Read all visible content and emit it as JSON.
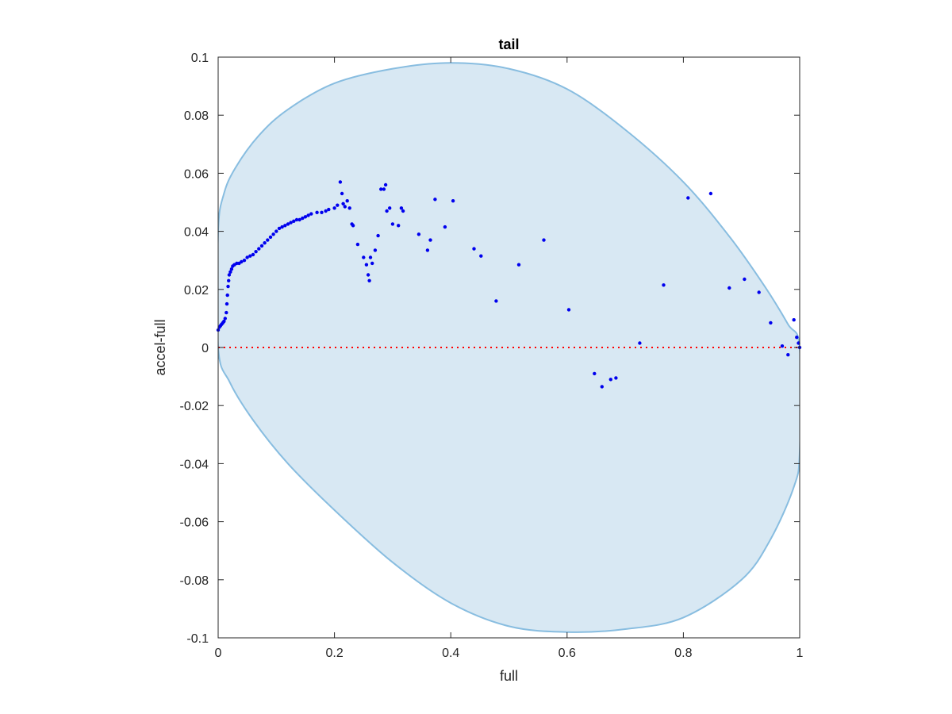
{
  "chart_data": {
    "type": "scatter",
    "title": "tail",
    "xlabel": "full",
    "ylabel": "accel-full",
    "xlim": [
      0,
      1
    ],
    "ylim": [
      -0.1,
      0.1
    ],
    "grid": false,
    "x_ticks": [
      "0",
      "0.2",
      "0.4",
      "0.6",
      "0.8",
      "1"
    ],
    "y_ticks": [
      "0.1",
      "0.08",
      "0.06",
      "0.04",
      "0.02",
      "0",
      "-0.02",
      "-0.04",
      "-0.06",
      "-0.08",
      "-0.1"
    ],
    "x_tick_values": [
      0,
      0.2,
      0.4,
      0.6,
      0.8,
      1
    ],
    "y_tick_values": [
      0.1,
      0.08,
      0.06,
      0.04,
      0.02,
      0,
      -0.02,
      -0.04,
      -0.06,
      -0.08,
      -0.1
    ],
    "reference_line": {
      "y": 0,
      "style": "dotted",
      "color": "#ff0000"
    },
    "region": {
      "shape": "ellipse",
      "fill": "#d8e8f3",
      "stroke": "#88bde0",
      "boundary": [
        [
          0.0,
          0.04
        ],
        [
          0.01,
          0.053
        ],
        [
          0.03,
          0.062
        ],
        [
          0.07,
          0.073
        ],
        [
          0.12,
          0.082
        ],
        [
          0.2,
          0.091
        ],
        [
          0.3,
          0.096
        ],
        [
          0.4,
          0.098
        ],
        [
          0.5,
          0.096
        ],
        [
          0.6,
          0.089
        ],
        [
          0.7,
          0.075
        ],
        [
          0.8,
          0.057
        ],
        [
          0.88,
          0.038
        ],
        [
          0.94,
          0.021
        ],
        [
          0.98,
          0.008
        ],
        [
          1.0,
          0.0
        ],
        [
          1.0,
          -0.036
        ],
        [
          0.99,
          -0.048
        ],
        [
          0.95,
          -0.066
        ],
        [
          0.9,
          -0.08
        ],
        [
          0.8,
          -0.093
        ],
        [
          0.7,
          -0.097
        ],
        [
          0.6,
          -0.098
        ],
        [
          0.5,
          -0.096
        ],
        [
          0.4,
          -0.088
        ],
        [
          0.3,
          -0.074
        ],
        [
          0.2,
          -0.056
        ],
        [
          0.12,
          -0.04
        ],
        [
          0.06,
          -0.025
        ],
        [
          0.02,
          -0.012
        ],
        [
          0.0,
          0.0
        ]
      ]
    },
    "series": [
      {
        "color": "#0000ee",
        "points": [
          [
            0.0,
            0.006
          ],
          [
            0.002,
            0.007
          ],
          [
            0.004,
            0.0075
          ],
          [
            0.006,
            0.008
          ],
          [
            0.008,
            0.0085
          ],
          [
            0.01,
            0.009
          ],
          [
            0.012,
            0.01
          ],
          [
            0.014,
            0.012
          ],
          [
            0.015,
            0.015
          ],
          [
            0.016,
            0.018
          ],
          [
            0.017,
            0.021
          ],
          [
            0.018,
            0.023
          ],
          [
            0.019,
            0.025
          ],
          [
            0.021,
            0.026
          ],
          [
            0.023,
            0.027
          ],
          [
            0.025,
            0.028
          ],
          [
            0.028,
            0.0285
          ],
          [
            0.032,
            0.029
          ],
          [
            0.036,
            0.029
          ],
          [
            0.04,
            0.0295
          ],
          [
            0.045,
            0.03
          ],
          [
            0.05,
            0.031
          ],
          [
            0.055,
            0.0315
          ],
          [
            0.06,
            0.032
          ],
          [
            0.065,
            0.033
          ],
          [
            0.07,
            0.034
          ],
          [
            0.075,
            0.035
          ],
          [
            0.08,
            0.036
          ],
          [
            0.085,
            0.037
          ],
          [
            0.09,
            0.038
          ],
          [
            0.095,
            0.039
          ],
          [
            0.1,
            0.04
          ],
          [
            0.105,
            0.041
          ],
          [
            0.11,
            0.0415
          ],
          [
            0.115,
            0.042
          ],
          [
            0.12,
            0.0425
          ],
          [
            0.125,
            0.043
          ],
          [
            0.13,
            0.0435
          ],
          [
            0.135,
            0.044
          ],
          [
            0.14,
            0.044
          ],
          [
            0.145,
            0.0445
          ],
          [
            0.15,
            0.045
          ],
          [
            0.155,
            0.0455
          ],
          [
            0.16,
            0.046
          ],
          [
            0.17,
            0.0465
          ],
          [
            0.178,
            0.0465
          ],
          [
            0.185,
            0.047
          ],
          [
            0.19,
            0.0475
          ],
          [
            0.2,
            0.048
          ],
          [
            0.205,
            0.049
          ],
          [
            0.21,
            0.057
          ],
          [
            0.213,
            0.053
          ],
          [
            0.215,
            0.0495
          ],
          [
            0.218,
            0.0485
          ],
          [
            0.222,
            0.0505
          ],
          [
            0.226,
            0.048
          ],
          [
            0.23,
            0.0425
          ],
          [
            0.232,
            0.042
          ],
          [
            0.24,
            0.0355
          ],
          [
            0.25,
            0.031
          ],
          [
            0.255,
            0.0285
          ],
          [
            0.258,
            0.025
          ],
          [
            0.26,
            0.023
          ],
          [
            0.262,
            0.031
          ],
          [
            0.265,
            0.029
          ],
          [
            0.27,
            0.0335
          ],
          [
            0.275,
            0.0385
          ],
          [
            0.28,
            0.0545
          ],
          [
            0.285,
            0.0545
          ],
          [
            0.288,
            0.056
          ],
          [
            0.29,
            0.047
          ],
          [
            0.295,
            0.048
          ],
          [
            0.3,
            0.0425
          ],
          [
            0.31,
            0.042
          ],
          [
            0.315,
            0.048
          ],
          [
            0.318,
            0.047
          ],
          [
            0.345,
            0.039
          ],
          [
            0.36,
            0.0335
          ],
          [
            0.365,
            0.037
          ],
          [
            0.373,
            0.051
          ],
          [
            0.39,
            0.0415
          ],
          [
            0.404,
            0.0505
          ],
          [
            0.44,
            0.034
          ],
          [
            0.452,
            0.0315
          ],
          [
            0.478,
            0.016
          ],
          [
            0.517,
            0.0285
          ],
          [
            0.56,
            0.037
          ],
          [
            0.603,
            0.013
          ],
          [
            0.647,
            -0.009
          ],
          [
            0.66,
            -0.0135
          ],
          [
            0.675,
            -0.011
          ],
          [
            0.684,
            -0.0105
          ],
          [
            0.725,
            0.0015
          ],
          [
            0.766,
            0.0215
          ],
          [
            0.808,
            0.0515
          ],
          [
            0.847,
            0.053
          ],
          [
            0.879,
            0.0205
          ],
          [
            0.905,
            0.0235
          ],
          [
            0.93,
            0.019
          ],
          [
            0.95,
            0.0085
          ],
          [
            0.97,
            0.0005
          ],
          [
            0.98,
            -0.0025
          ],
          [
            0.99,
            0.0095
          ],
          [
            0.995,
            0.0035
          ],
          [
            0.998,
            0.0015
          ],
          [
            1.0,
            0.0
          ]
        ]
      }
    ]
  }
}
